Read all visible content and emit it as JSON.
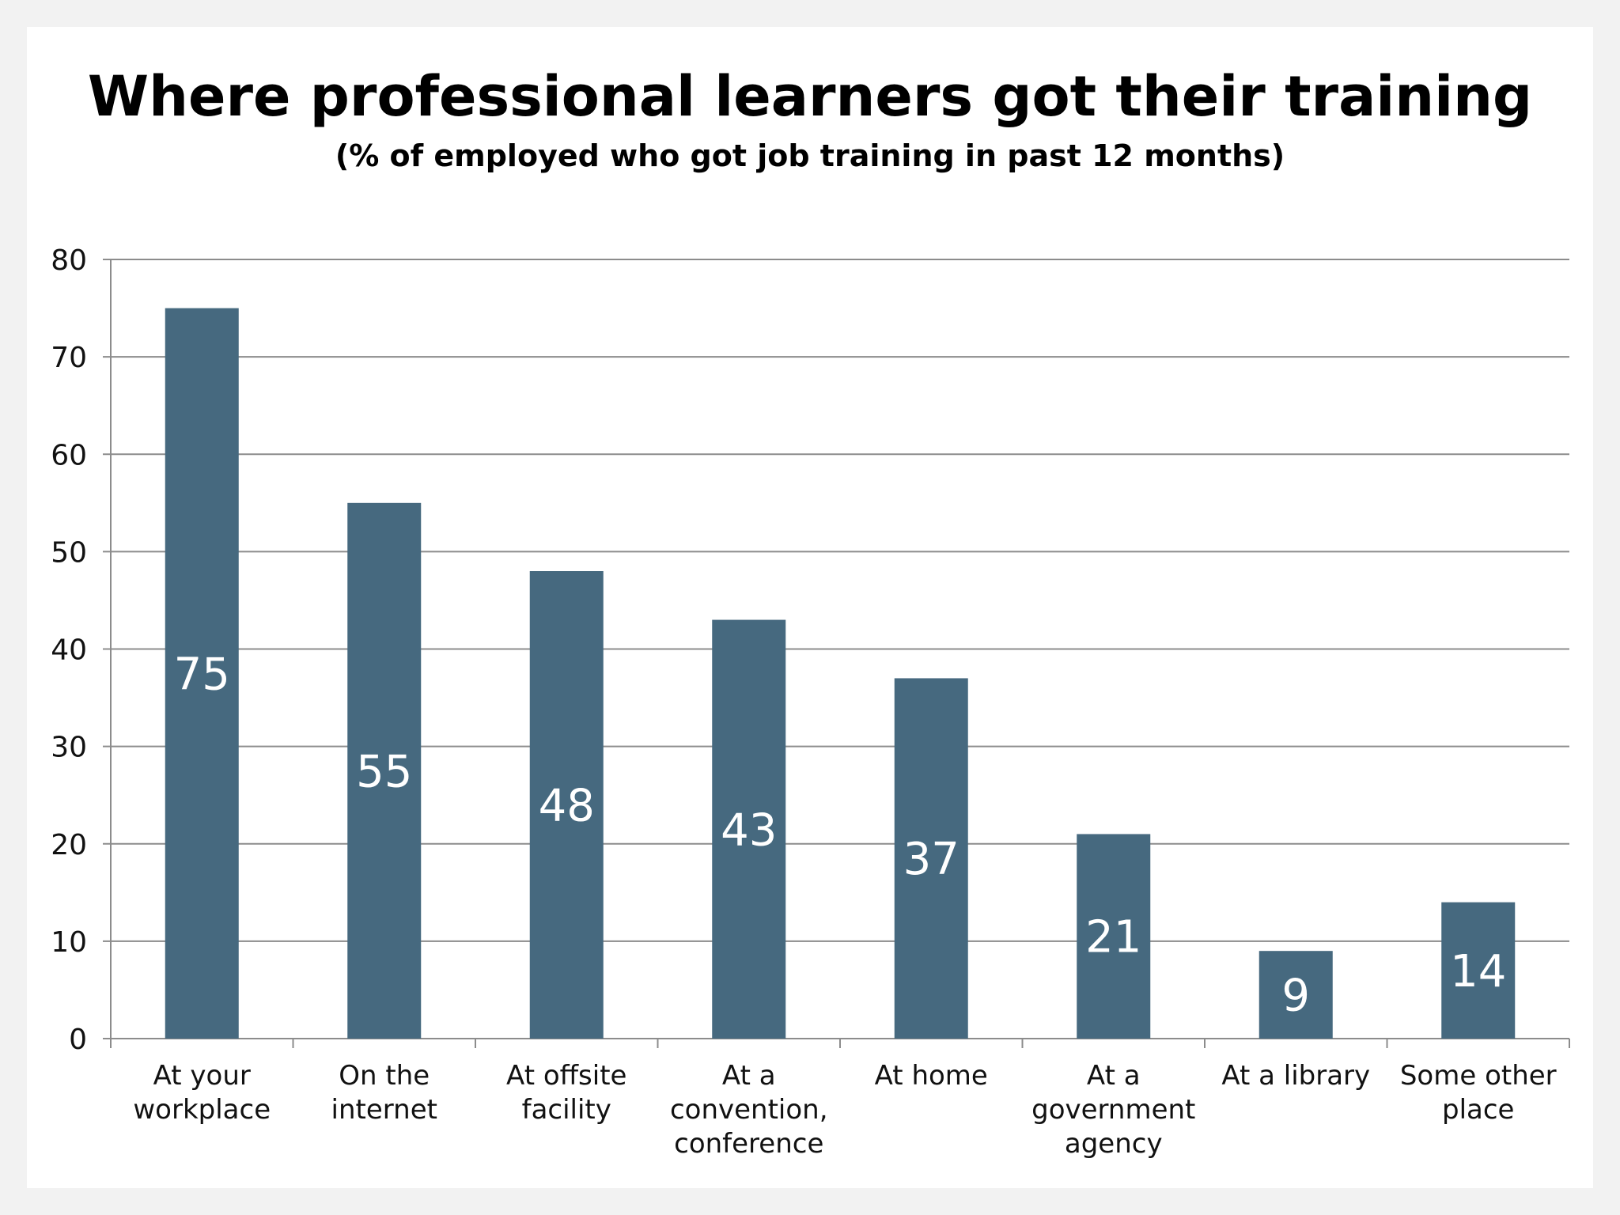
{
  "chart_data": {
    "type": "bar",
    "title": "Where professional learners got their training",
    "subtitle": "(% of employed who got job training in past 12 months)",
    "categories": [
      [
        "At your",
        "workplace"
      ],
      [
        "On the",
        "internet"
      ],
      [
        "At offsite",
        "facility"
      ],
      [
        "At a",
        "convention,",
        "conference"
      ],
      [
        "At home"
      ],
      [
        "At a",
        "government",
        "agency"
      ],
      [
        "At a library"
      ],
      [
        "Some other",
        "place"
      ]
    ],
    "values": [
      75,
      55,
      48,
      43,
      37,
      21,
      9,
      14
    ],
    "ylim": [
      0,
      80
    ],
    "yticks": [
      0,
      10,
      20,
      30,
      40,
      50,
      60,
      70,
      80
    ],
    "grid": true,
    "legend": "none",
    "bar_color": "#46697f",
    "grid_color": "#8c8c8c",
    "data_label_color": "#ffffff"
  }
}
